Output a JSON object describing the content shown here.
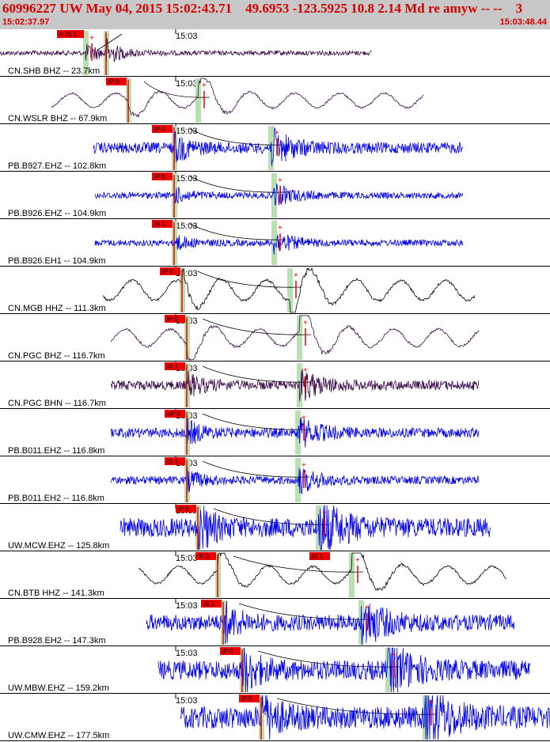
{
  "header": {
    "title": "60996227 UW May 04, 2015 15:02:43.71    49.6953 -123.5925 10.8 2.14 Md re amyw -- --    3",
    "start_time": "15:02:37.97",
    "end_time": "15:03:48.44"
  },
  "minute_tick_label": "15:03",
  "colors": {
    "header_bg": "#c8c8c8",
    "header_text": "#d40000",
    "pick_fill": "#ee0000",
    "window_fill": "#b8e0b0",
    "trace_broadband": "#3a0a4a",
    "trace_short_period": "#0000ee",
    "trace_hh": "#000000",
    "separator": "#000000"
  },
  "traces": [
    {
      "label": "CN.SHB BHZ -- 23.7km",
      "color": "#3a0a4a",
      "start": 0,
      "end": 470,
      "amp": 3,
      "p": 134,
      "s": 108,
      "picks": [
        "iP 0",
        "iS 1"
      ],
      "style": "noise"
    },
    {
      "label": "CN.WSLR BHZ -- 67.9km",
      "color": "#3a0a4a",
      "start": 65,
      "end": 535,
      "amp": 10,
      "p": 162,
      "s": 250,
      "picks": [
        "iP 0"
      ],
      "style": "wave"
    },
    {
      "label": "PB.B927.EHZ -- 102.8km",
      "color": "#0000ee",
      "start": 118,
      "end": 585,
      "amp": 7,
      "p": 220,
      "s": 342,
      "picks": [
        "iP 0"
      ],
      "style": "noise"
    },
    {
      "label": "PB.B926.EHZ -- 104.9km",
      "color": "#0000ee",
      "start": 120,
      "end": 585,
      "amp": 4,
      "p": 220,
      "s": 346,
      "picks": [
        "iP 0"
      ],
      "style": "noise"
    },
    {
      "label": "PB.B926.EH1 -- 104.9km",
      "color": "#0000ee",
      "start": 120,
      "end": 585,
      "amp": 4,
      "p": 220,
      "s": 346,
      "picks": [
        "iS 1"
      ],
      "style": "noise"
    },
    {
      "label": "CN.MGB HHZ -- 111.3km",
      "color": "#000000",
      "start": 130,
      "end": 600,
      "amp": 14,
      "p": 230,
      "s": 366,
      "picks": [
        "iP 0"
      ],
      "style": "wave"
    },
    {
      "label": "CN.PGC BHZ -- 116.7km",
      "color": "#3a0a4a",
      "start": 140,
      "end": 605,
      "amp": 12,
      "p": 236,
      "s": 378,
      "picks": [
        "iP 0"
      ],
      "style": "wave"
    },
    {
      "label": "CN.PGC BHN -- 116.7km",
      "color": "#3a0a4a",
      "start": 140,
      "end": 605,
      "amp": 6,
      "p": 236,
      "s": 378,
      "picks": [
        "iS 1"
      ],
      "style": "noise"
    },
    {
      "label": "PB.B011.EHZ -- 116.8km",
      "color": "#0000ee",
      "start": 140,
      "end": 605,
      "amp": 6,
      "p": 236,
      "s": 376,
      "picks": [
        "eP 0"
      ],
      "style": "noise"
    },
    {
      "label": "PB.B011.EH2 -- 116.8km",
      "color": "#0000ee",
      "start": 140,
      "end": 605,
      "amp": 5,
      "p": 236,
      "s": 376,
      "picks": [
        "iS 1"
      ],
      "style": "noise"
    },
    {
      "label": "UW.MCW.EHZ -- 125.8km",
      "color": "#0000ee",
      "start": 152,
      "end": 620,
      "amp": 12,
      "p": 250,
      "s": 402,
      "picks": [
        "iP 0"
      ],
      "style": "noise"
    },
    {
      "label": "CN.BTB HHZ -- 141.3km",
      "color": "#000000",
      "start": 175,
      "end": 640,
      "amp": 12,
      "p": 275,
      "s": 444,
      "picks": [
        "iP 0",
        "iS 1"
      ],
      "style": "wave"
    },
    {
      "label": "PB.B928.EH2 -- 147.3km",
      "color": "#0000ee",
      "start": 185,
      "end": 650,
      "amp": 10,
      "p": 282,
      "s": 456,
      "picks": [
        "iS 1"
      ],
      "style": "noise"
    },
    {
      "label": "UW.MBW.EHZ -- 159.2km",
      "color": "#0000ee",
      "start": 200,
      "end": 670,
      "amp": 12,
      "p": 306,
      "s": 490,
      "picks": [
        "iP 0"
      ],
      "style": "noise"
    },
    {
      "label": "UW.CMW.EHZ -- 177.5km",
      "color": "#0000ee",
      "start": 228,
      "end": 695,
      "amp": 14,
      "p": 330,
      "s": 537,
      "picks": [
        "iP 0"
      ],
      "style": "noise"
    }
  ]
}
